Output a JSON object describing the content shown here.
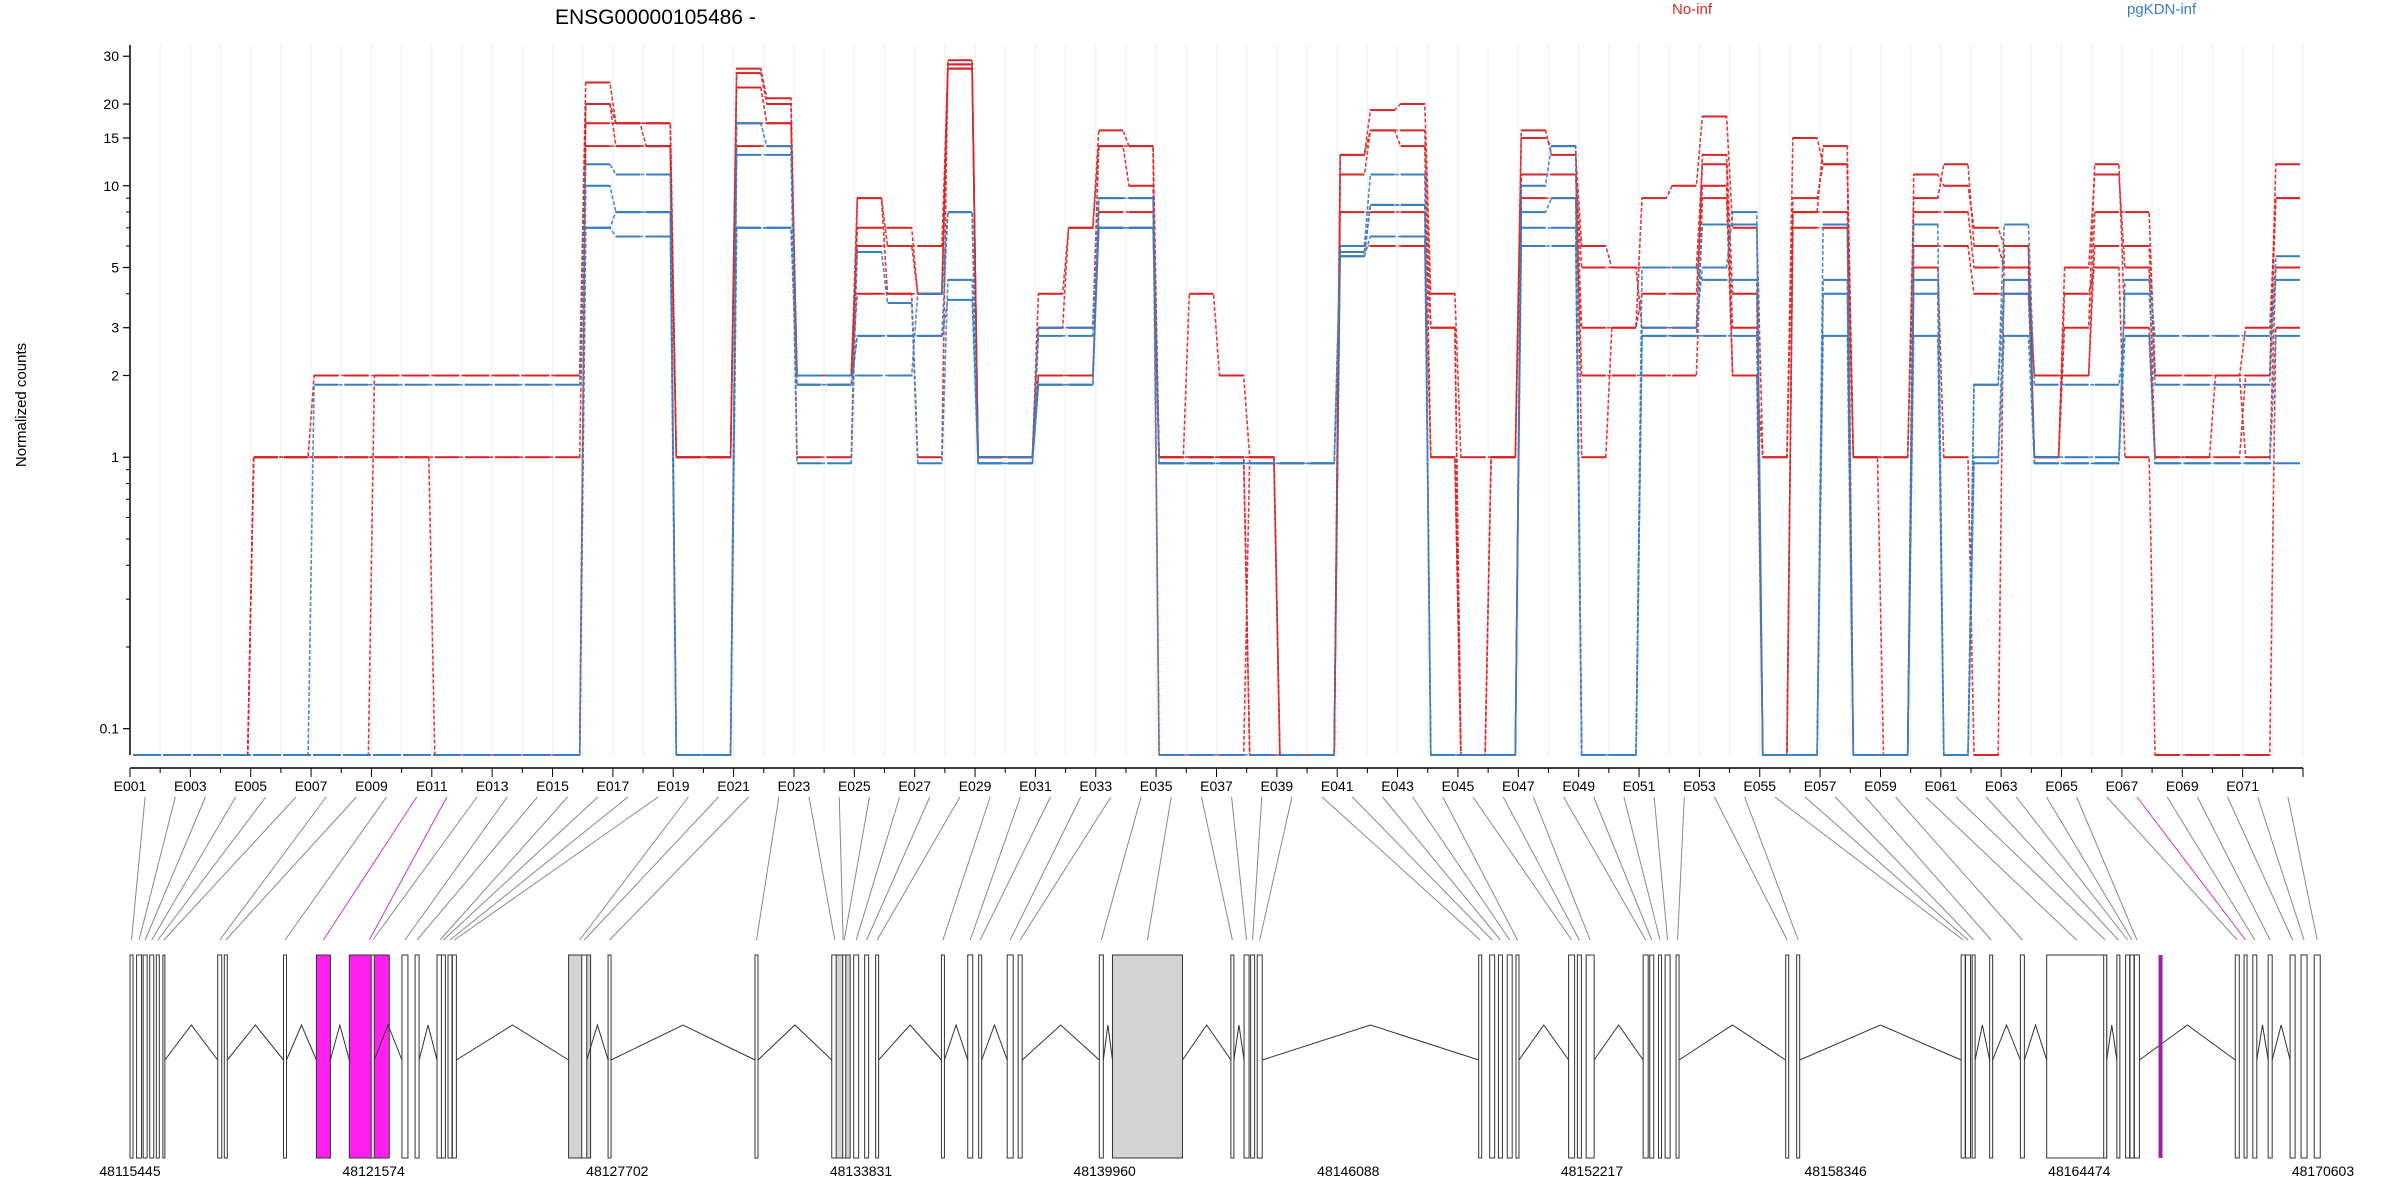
{
  "chart_data": {
    "type": "line",
    "title": "ENSG00000105486 -",
    "ylabel": "Normalized counts",
    "y_scale": "log",
    "ylim": [
      0.08,
      33
    ],
    "y_ticks": [
      {
        "v": 0.1,
        "label": "0.1"
      },
      {
        "v": 1,
        "label": "1"
      },
      {
        "v": 2,
        "label": "2"
      },
      {
        "v": 3,
        "label": "3"
      },
      {
        "v": 5,
        "label": "5"
      },
      {
        "v": 10,
        "label": "10"
      },
      {
        "v": 15,
        "label": "15"
      },
      {
        "v": 20,
        "label": "20"
      },
      {
        "v": 30,
        "label": "30"
      }
    ],
    "legend": [
      {
        "name": "No-inf",
        "color": "#d62728"
      },
      {
        "name": "pgKDN-inf",
        "color": "#3a7dc0"
      }
    ],
    "exon_labels": [
      "E001",
      "E003",
      "E005",
      "E007",
      "E009",
      "E011",
      "E013",
      "E015",
      "E017",
      "E019",
      "E021",
      "E023",
      "E025",
      "E027",
      "E029",
      "E031",
      "E033",
      "E035",
      "E037",
      "E039",
      "E041",
      "E043",
      "E045",
      "E047",
      "E049",
      "E051",
      "E053",
      "E055",
      "E057",
      "E059",
      "E061",
      "E063",
      "E065",
      "E067",
      "E069",
      "E071"
    ],
    "exon_count": 72,
    "series": [
      {
        "group": "No-inf",
        "color": "#d62728",
        "values": [
          0.08,
          0.08,
          0.08,
          0.08,
          1,
          1,
          1,
          1,
          1,
          1,
          0.08,
          0.08,
          0.08,
          0.08,
          0.08,
          20,
          17,
          17,
          1,
          1,
          27,
          21,
          1,
          1,
          9,
          4,
          1,
          28,
          1,
          1,
          3,
          7,
          14,
          10,
          1,
          1,
          1,
          1,
          0.08,
          0.08,
          13,
          19,
          20,
          4,
          1,
          1,
          16,
          13,
          6,
          5,
          3,
          3,
          13,
          4,
          0.08,
          8,
          14,
          0.08,
          0.08,
          5,
          1,
          0.08,
          6,
          1,
          4,
          5,
          1,
          0.08,
          0.08,
          0.08,
          0.08,
          3
        ]
      },
      {
        "group": "No-inf",
        "color": "#d62728",
        "values": [
          0.08,
          0.08,
          0.08,
          0.08,
          1,
          1,
          2,
          2,
          2,
          2,
          2,
          2,
          2,
          2,
          2,
          24,
          17,
          14,
          1,
          1,
          23,
          17,
          2,
          2,
          9,
          6,
          4,
          29,
          1,
          1,
          4,
          7,
          16,
          14,
          1,
          4,
          2,
          1,
          0.08,
          0.08,
          11,
          16,
          14,
          1,
          0.08,
          1,
          15,
          14,
          1,
          3,
          9,
          10,
          18,
          7,
          1,
          15,
          12,
          1,
          0.08,
          11,
          10,
          7,
          6,
          1,
          5,
          11,
          5,
          1,
          1,
          1,
          2,
          12
        ]
      },
      {
        "group": "No-inf",
        "color": "#d62728",
        "values": [
          0.08,
          0.08,
          0.08,
          0.08,
          1,
          1,
          1,
          1,
          1,
          1,
          1,
          1,
          1,
          1,
          1,
          20,
          14,
          14,
          1,
          1,
          26,
          20,
          2,
          2,
          7,
          7,
          4,
          27,
          1,
          1,
          3,
          3,
          14,
          14,
          0.08,
          0.08,
          0.08,
          1,
          0.08,
          0.08,
          13,
          16,
          16,
          3,
          0.08,
          1,
          11,
          11,
          5,
          5,
          5,
          5,
          12,
          2,
          1,
          9,
          12,
          1,
          1,
          9,
          12,
          6,
          5,
          1,
          3,
          12,
          3,
          1,
          1,
          2,
          1,
          5
        ]
      },
      {
        "group": "No-inf",
        "color": "#d62728",
        "values": [
          0.08,
          0.08,
          0.08,
          0.08,
          0.08,
          0.08,
          0.08,
          0.08,
          2,
          2,
          2,
          2,
          2,
          2,
          2,
          17,
          17,
          17,
          1,
          1,
          17,
          17,
          2,
          2,
          6,
          6,
          6,
          27,
          1,
          1,
          2,
          2,
          8,
          8,
          1,
          1,
          1,
          0.08,
          0.08,
          0.08,
          8,
          8,
          8,
          3,
          0.08,
          0.08,
          11,
          11,
          3,
          3,
          4,
          4,
          10,
          3,
          0.08,
          8,
          8,
          1,
          1,
          8,
          8,
          5,
          5,
          2,
          2,
          8,
          8,
          2,
          2,
          2,
          3,
          9
        ]
      },
      {
        "group": "No-inf",
        "color": "#d62728",
        "values": [
          0.08,
          0.08,
          0.08,
          0.08,
          0.08,
          0.08,
          0.08,
          0.08,
          0.08,
          0.08,
          0.08,
          0.08,
          0.08,
          0.08,
          0.08,
          14,
          14,
          14,
          0.08,
          0.08,
          14,
          14,
          2,
          2,
          4,
          4,
          4,
          28,
          1,
          1,
          2,
          2,
          7,
          7,
          1,
          1,
          1,
          0.08,
          0.08,
          0.08,
          6,
          6,
          6,
          1,
          0.08,
          0.08,
          9,
          9,
          2,
          2,
          2,
          2,
          9,
          2,
          0.08,
          7,
          7,
          0.08,
          0.08,
          6,
          6,
          4,
          4,
          2,
          2,
          6,
          6,
          2,
          2,
          2,
          2,
          9
        ]
      },
      {
        "group": "pgKDN-inf",
        "color": "#3a7dc0",
        "values": [
          0.08,
          0.08,
          0.08,
          0.08,
          0.08,
          0.08,
          1.85,
          1.85,
          1.85,
          1.85,
          1.85,
          1.85,
          1.85,
          1.85,
          1.85,
          12,
          11,
          11,
          0.08,
          0.08,
          17,
          14,
          2,
          2,
          2,
          2,
          4,
          8,
          1,
          1,
          3,
          3,
          9,
          9,
          0.08,
          0.08,
          0.08,
          0.08,
          0.08,
          0.08,
          6,
          11,
          11,
          0.08,
          0.08,
          0.08,
          8,
          9,
          0.08,
          0.08,
          3,
          3,
          5,
          8,
          0.08,
          0.08,
          4,
          0.08,
          0.08,
          4,
          0.08,
          1,
          4,
          1,
          1,
          1,
          4,
          1.85,
          1.85,
          1.85,
          1.85,
          5.5
        ]
      },
      {
        "group": "pgKDN-inf",
        "color": "#3a7dc0",
        "values": [
          0.08,
          0.08,
          0.08,
          0.08,
          0.08,
          0.08,
          0.08,
          0.08,
          0.08,
          0.08,
          0.08,
          0.08,
          0.08,
          0.08,
          0.08,
          10,
          8,
          8,
          0.08,
          0.08,
          13,
          13,
          0.95,
          0.95,
          5.7,
          3.7,
          0.95,
          4.5,
          0.95,
          0.95,
          1.85,
          1.85,
          9,
          9,
          0.95,
          0.95,
          0.95,
          0.95,
          0.95,
          0.95,
          5.5,
          8.5,
          8.5,
          0.08,
          0.08,
          0.08,
          10,
          14,
          0.08,
          0.08,
          5,
          5,
          4.5,
          4.5,
          0.08,
          0.08,
          4.5,
          0.08,
          0.08,
          4.5,
          0.08,
          1.85,
          4.5,
          0.95,
          0.95,
          0.95,
          4.5,
          2.8,
          2.8,
          2.8,
          2.8,
          4.5
        ]
      },
      {
        "group": "pgKDN-inf",
        "color": "#3a7dc0",
        "values": [
          0.08,
          0.08,
          0.08,
          0.08,
          0.08,
          0.08,
          0.08,
          0.08,
          0.08,
          0.08,
          0.08,
          0.08,
          0.08,
          0.08,
          0.08,
          7,
          8,
          8,
          0.08,
          0.08,
          7,
          7,
          1.85,
          1.85,
          2.8,
          2.8,
          2.8,
          8,
          0.95,
          0.95,
          2.8,
          2.8,
          7,
          7,
          0.95,
          0.95,
          0.95,
          0.95,
          0.95,
          0.95,
          5.7,
          8.5,
          8.5,
          0.08,
          0.08,
          0.08,
          7,
          7,
          0.08,
          0.08,
          2.8,
          2.8,
          7.2,
          7.2,
          0.08,
          0.08,
          7.2,
          0.08,
          0.08,
          7.2,
          0.08,
          1.85,
          7.2,
          1.85,
          1.85,
          1.85,
          2.8,
          0.95,
          0.95,
          0.95,
          0.95,
          2.8
        ]
      },
      {
        "group": "pgKDN-inf",
        "color": "#3a7dc0",
        "values": [
          0.08,
          0.08,
          0.08,
          0.08,
          0.08,
          0.08,
          0.08,
          0.08,
          0.08,
          0.08,
          0.08,
          0.08,
          0.08,
          0.08,
          0.08,
          7,
          6.5,
          6.5,
          0.08,
          0.08,
          7,
          7,
          1.85,
          1.85,
          2.8,
          2.8,
          2.8,
          3.8,
          0.95,
          0.95,
          1.85,
          1.85,
          7,
          7,
          0.95,
          0.95,
          0.95,
          0.95,
          0.95,
          0.95,
          5.5,
          6.5,
          6.5,
          0.08,
          0.08,
          0.08,
          6,
          6,
          0.08,
          0.08,
          2.8,
          2.8,
          2.8,
          2.8,
          0.08,
          0.08,
          2.8,
          0.08,
          0.08,
          2.8,
          0.08,
          0.95,
          2.8,
          0.95,
          0.95,
          0.95,
          2.8,
          0.95,
          0.95,
          0.95,
          0.95,
          0.95
        ]
      }
    ],
    "gene_model": {
      "coord_labels": [
        "48115445",
        "48121574",
        "48127702",
        "48133831",
        "48139960",
        "48146088",
        "48152217",
        "48158346",
        "48164474",
        "48170603"
      ],
      "introns_label": "",
      "exons": []
    }
  }
}
